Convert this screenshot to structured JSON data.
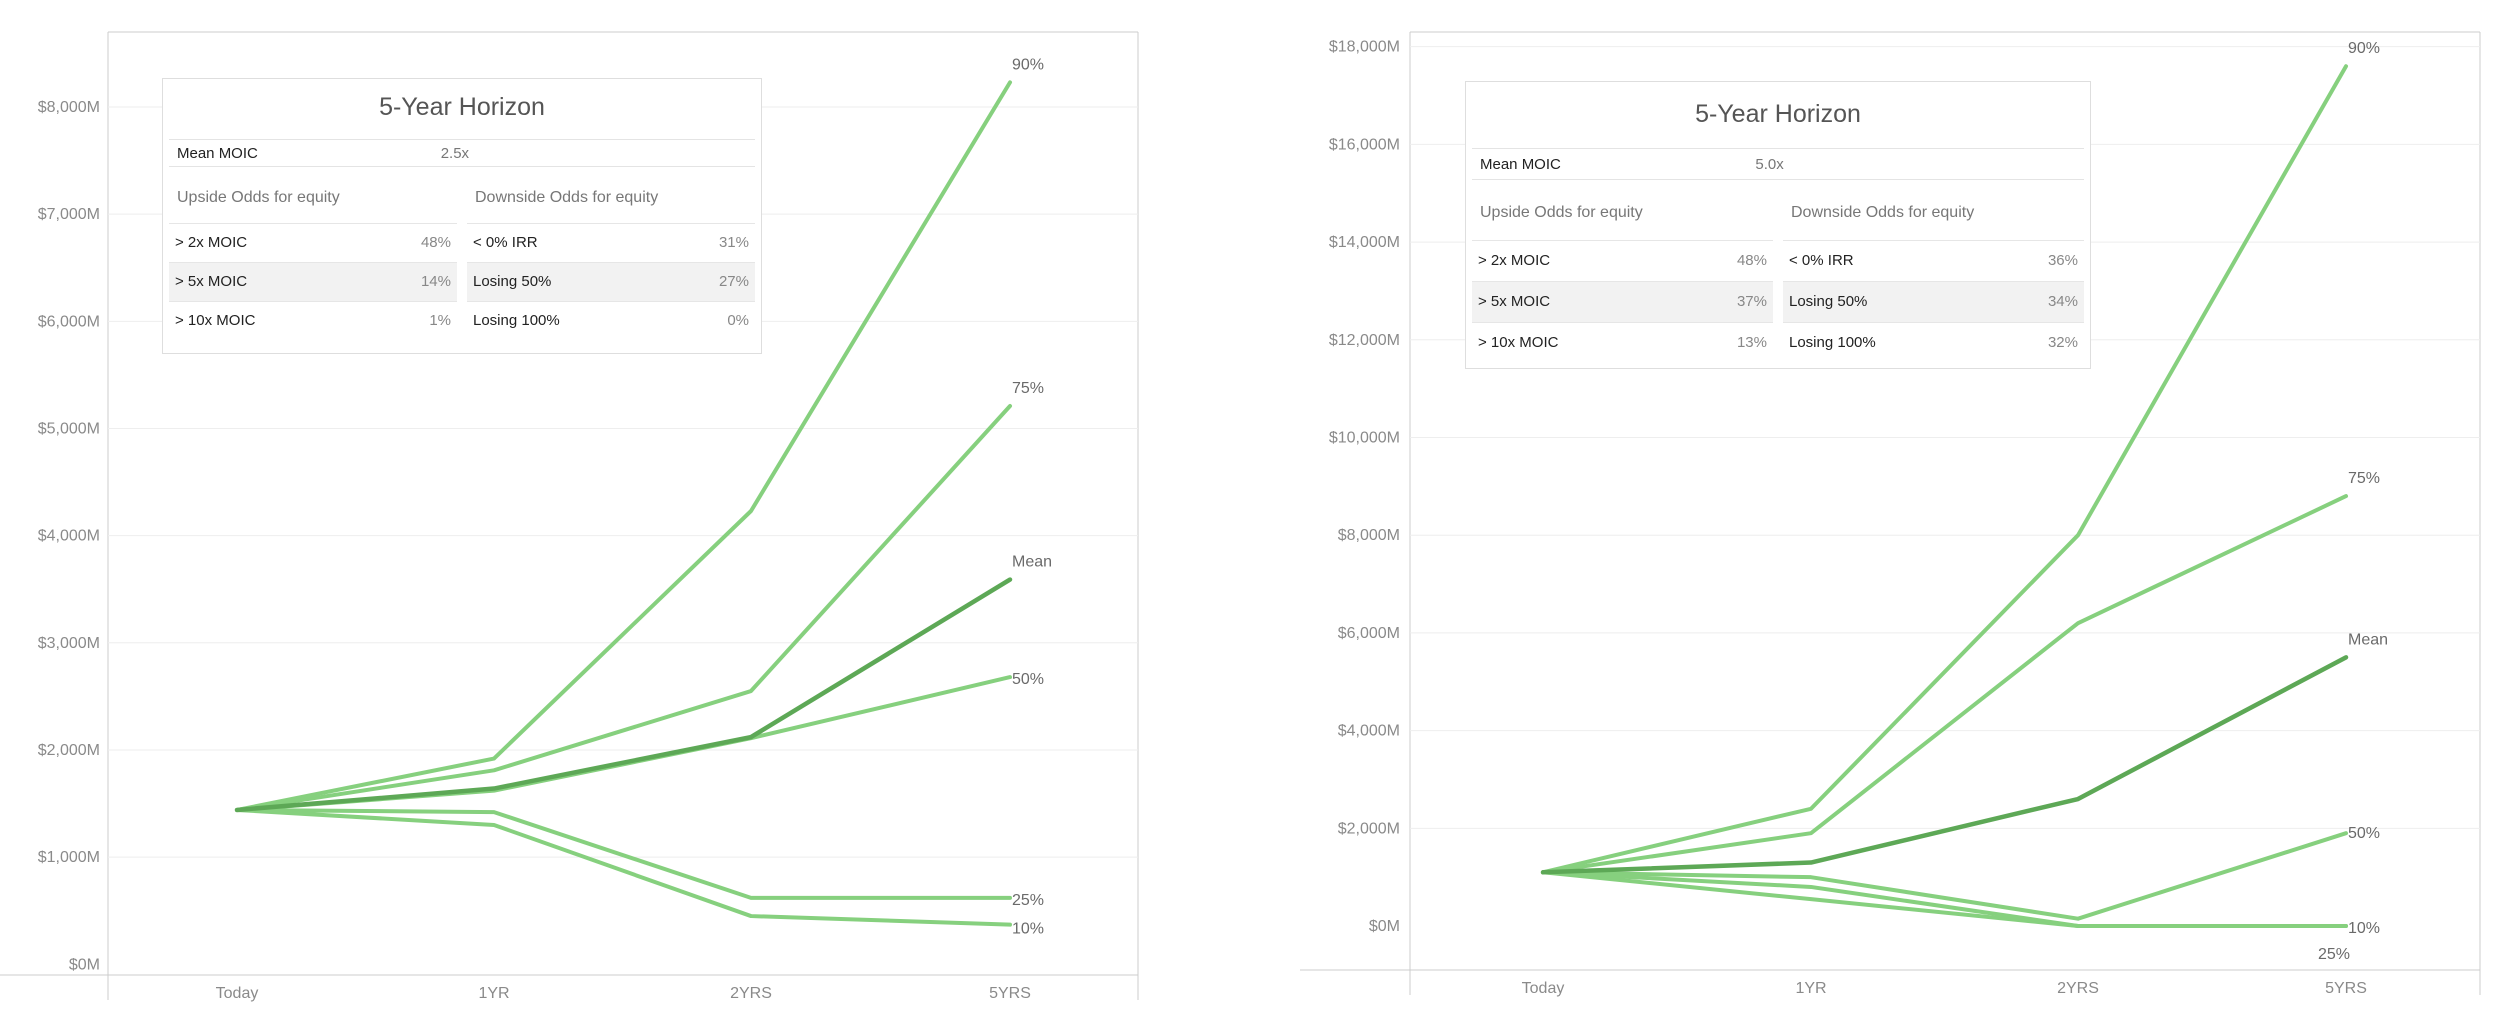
{
  "chart_data": [
    {
      "type": "line",
      "title": "",
      "categories": [
        "Today",
        "1YR",
        "2YRS",
        "5YRS"
      ],
      "y_ticks": [
        "$0M",
        "$1,000M",
        "$2,000M",
        "$3,000M",
        "$4,000M",
        "$5,000M",
        "$6,000M",
        "$7,000M",
        "$8,000M"
      ],
      "ylim": [
        -100,
        8700
      ],
      "series": [
        {
          "name": "90%",
          "label": "90%",
          "values": [
            1440,
            1920,
            4230,
            8230
          ],
          "emphasis": false
        },
        {
          "name": "75%",
          "label": "75%",
          "values": [
            1440,
            1810,
            2550,
            5210
          ],
          "emphasis": false
        },
        {
          "name": "Mean",
          "label": "Mean",
          "values": [
            1440,
            1640,
            2120,
            3590
          ],
          "emphasis": true
        },
        {
          "name": "50%",
          "label": "50%",
          "values": [
            1440,
            1620,
            2110,
            2680
          ],
          "emphasis": false
        },
        {
          "name": "25%",
          "label": "25%",
          "values": [
            1440,
            1420,
            620,
            620
          ],
          "emphasis": false
        },
        {
          "name": "10%",
          "label": "10%",
          "values": [
            1440,
            1300,
            450,
            370
          ],
          "emphasis": false
        }
      ],
      "summary": {
        "title": "5-Year Horizon",
        "mean_moic_label": "Mean MOIC",
        "mean_moic_value": "2.5x",
        "upside_header": "Upside Odds for equity",
        "downside_header": "Downside Odds for equity",
        "upside": [
          {
            "label": "> 2x MOIC",
            "value": "48%"
          },
          {
            "label": "> 5x MOIC",
            "value": "14%"
          },
          {
            "label": "> 10x MOIC",
            "value": "1%"
          }
        ],
        "downside": [
          {
            "label": "< 0% IRR",
            "value": "31%"
          },
          {
            "label": "Losing 50%",
            "value": "27%"
          },
          {
            "label": "Losing 100%",
            "value": "0%"
          }
        ]
      }
    },
    {
      "type": "line",
      "title": "",
      "categories": [
        "Today",
        "1YR",
        "2YRS",
        "5YRS"
      ],
      "y_ticks": [
        "$0M",
        "$2,000M",
        "$4,000M",
        "$6,000M",
        "$8,000M",
        "$10,000M",
        "$12,000M",
        "$14,000M",
        "$16,000M",
        "$18,000M"
      ],
      "ylim": [
        -900,
        18300
      ],
      "series": [
        {
          "name": "90%",
          "label": "90%",
          "values": [
            1100,
            2400,
            8000,
            17600
          ],
          "emphasis": false
        },
        {
          "name": "75%",
          "label": "75%",
          "values": [
            1100,
            1900,
            6200,
            8800
          ],
          "emphasis": false
        },
        {
          "name": "Mean",
          "label": "Mean",
          "values": [
            1100,
            1300,
            2600,
            5500
          ],
          "emphasis": true
        },
        {
          "name": "50%",
          "label": "50%",
          "values": [
            1100,
            1000,
            150,
            1900
          ],
          "emphasis": false
        },
        {
          "name": "25%",
          "label": "25%",
          "values": [
            1100,
            800,
            0,
            0
          ],
          "emphasis": false
        },
        {
          "name": "10%",
          "label": "10%",
          "values": [
            1100,
            550,
            0,
            0
          ],
          "emphasis": false
        }
      ],
      "summary": {
        "title": "5-Year Horizon",
        "mean_moic_label": "Mean MOIC",
        "mean_moic_value": "5.0x",
        "upside_header": "Upside Odds for equity",
        "downside_header": "Downside Odds for equity",
        "upside": [
          {
            "label": "> 2x MOIC",
            "value": "48%"
          },
          {
            "label": "> 5x MOIC",
            "value": "37%"
          },
          {
            "label": "> 10x MOIC",
            "value": "13%"
          }
        ],
        "downside": [
          {
            "label": "< 0% IRR",
            "value": "36%"
          },
          {
            "label": "Losing 50%",
            "value": "34%"
          },
          {
            "label": "Losing 100%",
            "value": "32%"
          }
        ]
      }
    }
  ],
  "colors": {
    "line": "#86d07e",
    "mean_line": "#5da856",
    "grid": "#eeeeee",
    "axis": "#cccccc",
    "text": "#8a8a8a"
  }
}
